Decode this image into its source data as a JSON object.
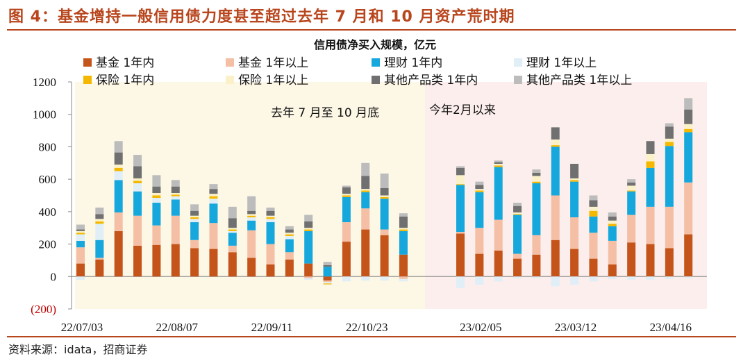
{
  "figure": {
    "title": "图 4：基金增持一般信用债力度甚至超过去年 7 月和 10 月资产荒时期",
    "source": "资料来源：idata，招商证券"
  },
  "chart_data": {
    "type": "bar",
    "stacked": true,
    "title": "信用债净买入规模，亿元",
    "ylim": [
      -200,
      1200
    ],
    "yticks": [
      -200,
      0,
      200,
      400,
      600,
      800,
      1000,
      1200
    ],
    "ytick_labels": [
      "(200)",
      "0",
      "200",
      "400",
      "600",
      "800",
      "1000",
      "1200"
    ],
    "xtick_labels": [
      "22/07/03",
      "22/08/07",
      "22/09/11",
      "22/10/23",
      "23/02/05",
      "23/03/12",
      "23/04/16"
    ],
    "legend_position": "top",
    "annotations": [
      "去年 7 月至 10 月底",
      "今年2月以来"
    ],
    "shaded_periods": [
      {
        "label": "去年 7 月至 10 月底",
        "from_week": 0,
        "to_week": 18,
        "color": "#fdf7e6"
      },
      {
        "label": "今年2月以来",
        "from_week": 19,
        "to_week": 33,
        "color": "#fbeeec"
      }
    ],
    "series": [
      {
        "name": "基金 1年内",
        "color": "#c5541a",
        "values": [
          80,
          105,
          280,
          190,
          195,
          200,
          175,
          170,
          150,
          115,
          75,
          105,
          80,
          -25,
          215,
          290,
          255,
          135,
          0,
          265,
          140,
          160,
          110,
          135,
          225,
          170,
          110,
          75,
          210,
          200,
          175,
          260
        ]
      },
      {
        "name": "基金 1年以上",
        "color": "#f4bfa4",
        "values": [
          100,
          10,
          115,
          185,
          120,
          175,
          50,
          160,
          40,
          170,
          125,
          45,
          -10,
          -8,
          120,
          130,
          35,
          -15,
          0,
          10,
          160,
          190,
          30,
          120,
          275,
          195,
          160,
          145,
          170,
          230,
          255,
          320
        ]
      },
      {
        "name": "理财 1年内",
        "color": "#16a8dd",
        "values": [
          40,
          110,
          200,
          150,
          140,
          100,
          110,
          120,
          80,
          60,
          135,
          80,
          200,
          60,
          155,
          100,
          190,
          145,
          0,
          290,
          220,
          325,
          240,
          320,
          300,
          220,
          100,
          90,
          145,
          240,
          375,
          310
        ]
      },
      {
        "name": "理财 1年以上",
        "color": "#dfeef7",
        "values": [
          40,
          100,
          55,
          50,
          30,
          20,
          20,
          30,
          10,
          20,
          20,
          20,
          -10,
          -10,
          -30,
          -25,
          -25,
          -15,
          0,
          -70,
          -50,
          -30,
          -10,
          -10,
          -60,
          -50,
          -30,
          -15,
          -20,
          -20,
          -15,
          -10
        ]
      },
      {
        "name": "保险 1年内",
        "color": "#f5b800",
        "values": [
          10,
          15,
          20,
          15,
          15,
          10,
          10,
          15,
          10,
          10,
          10,
          10,
          10,
          -5,
          10,
          10,
          10,
          10,
          0,
          5,
          10,
          10,
          5,
          10,
          10,
          10,
          35,
          15,
          5,
          40,
          25,
          20
        ]
      },
      {
        "name": "保险 1年以上",
        "color": "#fbf1c9",
        "values": [
          10,
          15,
          20,
          15,
          15,
          10,
          10,
          15,
          10,
          10,
          10,
          10,
          10,
          -5,
          10,
          10,
          10,
          10,
          0,
          55,
          10,
          10,
          10,
          35,
          35,
          10,
          25,
          20,
          30,
          45,
          20,
          30
        ]
      },
      {
        "name": "其他产品类 1年内",
        "color": "#707070",
        "values": [
          10,
          30,
          75,
          75,
          40,
          40,
          30,
          30,
          60,
          20,
          30,
          20,
          40,
          10,
          40,
          80,
          45,
          70,
          0,
          45,
          25,
          10,
          40,
          20,
          75,
          90,
          40,
          25,
          20,
          80,
          75,
          90
        ]
      },
      {
        "name": "其他产品类 1年以上",
        "color": "#bcbcbc",
        "values": [
          30,
          40,
          70,
          70,
          70,
          40,
          40,
          30,
          70,
          90,
          20,
          20,
          40,
          20,
          10,
          80,
          90,
          20,
          0,
          10,
          20,
          10,
          20,
          20,
          0,
          0,
          30,
          25,
          20,
          0,
          20,
          70
        ]
      },
      {
        "name": "negative_other",
        "legend": false,
        "color": "#dfeef7",
        "values": [
          -20,
          0,
          0,
          0,
          0,
          0,
          0,
          0,
          0,
          0,
          0,
          0,
          0,
          0,
          0,
          0,
          0,
          0,
          0,
          0,
          0,
          0,
          0,
          0,
          0,
          0,
          0,
          0,
          0,
          0,
          0,
          0
        ]
      }
    ]
  }
}
